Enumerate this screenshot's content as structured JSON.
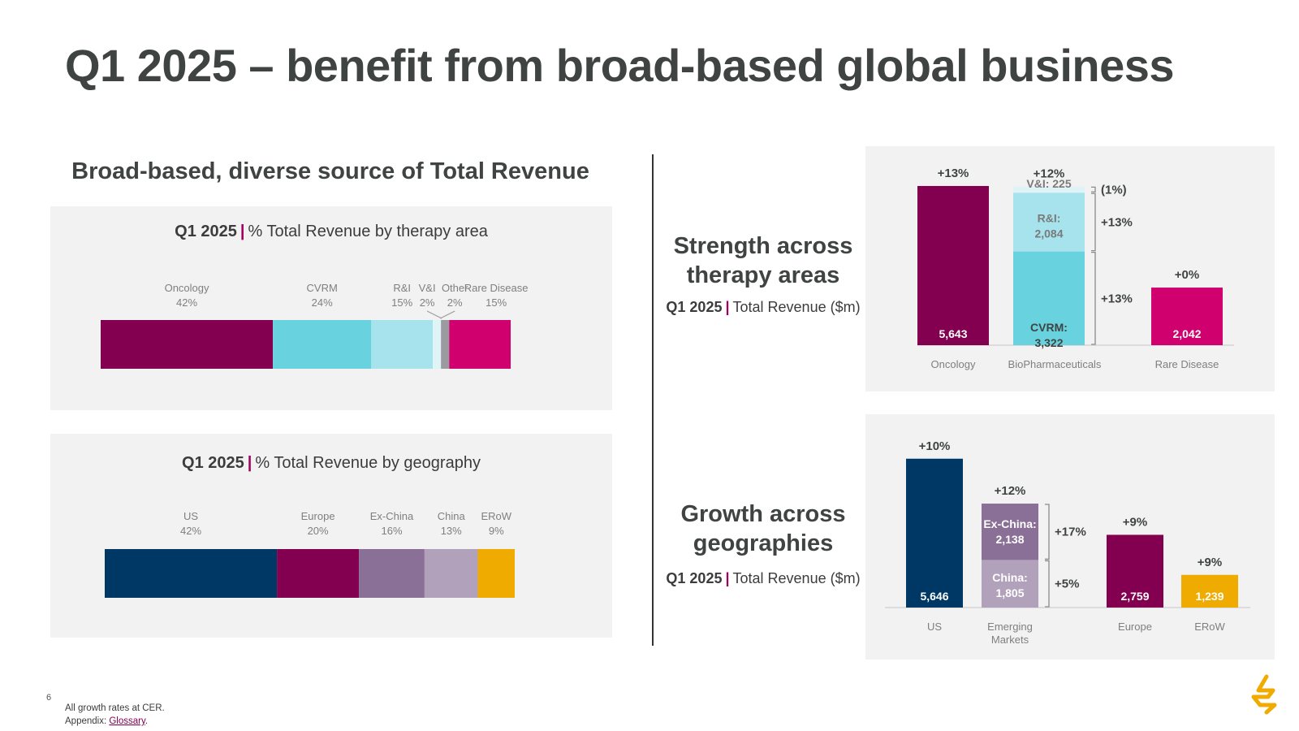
{
  "page": {
    "title": "Q1 2025 – benefit from broad-based global business",
    "left_heading": "Broad-based, diverse source of Total Revenue",
    "page_number": "6",
    "footnote_1": "All growth rates at CER.",
    "footnote_2_prefix": "Appendix: ",
    "footnote_2_link": "Glossary",
    "footnote_2_suffix": "."
  },
  "therapy_panel": {
    "title_bold": "Q1 2025",
    "title_sep": "|",
    "title_rest": "% Total Revenue by therapy area"
  },
  "geo_panel": {
    "title_bold": "Q1 2025",
    "title_sep": "|",
    "title_rest": "% Total Revenue by geography"
  },
  "therapy_heading": {
    "line1": "Strength across",
    "line2": "therapy areas",
    "sub_bold": "Q1 2025",
    "sub_sep": "|",
    "sub_rest": "Total Revenue ($m)"
  },
  "geo_heading": {
    "line1": "Growth across",
    "line2": "geographies",
    "sub_bold": "Q1 2025",
    "sub_sep": "|",
    "sub_rest": "Total Revenue ($m)"
  },
  "chart_data": [
    {
      "id": "therapy_share",
      "type": "bar",
      "orientation": "horizontal-stacked",
      "segments": [
        {
          "name": "Oncology",
          "value": 42,
          "label": "42%",
          "color": "#830051"
        },
        {
          "name": "CVRM",
          "value": 24,
          "label": "24%",
          "color": "#68d2df"
        },
        {
          "name": "R&I",
          "value": 15,
          "label": "15%",
          "color": "#a6e3ec"
        },
        {
          "name": "V&I",
          "value": 2,
          "label": "2%",
          "color": "#e0f4f7"
        },
        {
          "name": "Other",
          "value": 2,
          "label": "2%",
          "color": "#9b9aa0"
        },
        {
          "name": "Rare Disease",
          "value": 15,
          "label": "15%",
          "color": "#d0006f"
        }
      ]
    },
    {
      "id": "geo_share",
      "type": "bar",
      "orientation": "horizontal-stacked",
      "segments": [
        {
          "name": "US",
          "value": 42,
          "label": "42%",
          "color": "#003865"
        },
        {
          "name": "Europe",
          "value": 20,
          "label": "20%",
          "color": "#830051"
        },
        {
          "name": "Ex-China",
          "value": 16,
          "label": "16%",
          "color": "#8a7096"
        },
        {
          "name": "China",
          "value": 13,
          "label": "13%",
          "color": "#b2a1bb"
        },
        {
          "name": "ERoW",
          "value": 9,
          "label": "9%",
          "color": "#f0ab00"
        }
      ]
    },
    {
      "id": "therapy_revenue",
      "type": "bar",
      "unit": "$m",
      "ylim": [
        0,
        5700
      ],
      "categories": [
        "Oncology",
        "BioPharmaceuticals",
        "Rare Disease"
      ],
      "bars": [
        {
          "category": "Oncology",
          "growth": "+13%",
          "stack": [
            {
              "name": "Oncology",
              "value": 5643,
              "label": "5,643",
              "color": "#830051",
              "text_color": "#ffffff"
            }
          ]
        },
        {
          "category": "BioPharmaceuticals",
          "growth": "+12%",
          "stack": [
            {
              "name": "CVRM",
              "value": 3322,
              "label": "CVRM:|3,322",
              "color": "#68d2df",
              "text_color": "#3f4443",
              "growth": "+13%"
            },
            {
              "name": "R&I",
              "value": 2084,
              "label": "R&I:|2,084",
              "color": "#a6e3ec",
              "text_color": "#7a7a7a",
              "growth": "+13%"
            },
            {
              "name": "V&I",
              "value": 225,
              "label": "V&I: 225",
              "color": "#e0f4f7",
              "text_color": "#7a7a7a",
              "growth": "(1%)"
            }
          ]
        },
        {
          "category": "Rare Disease",
          "growth": "+0%",
          "stack": [
            {
              "name": "Rare Disease",
              "value": 2042,
              "label": "2,042",
              "color": "#d0006f",
              "text_color": "#ffffff"
            }
          ]
        }
      ]
    },
    {
      "id": "geo_revenue",
      "type": "bar",
      "unit": "$m",
      "ylim": [
        0,
        5700
      ],
      "categories": [
        "US",
        "Emerging Markets",
        "Europe",
        "ERoW"
      ],
      "bars": [
        {
          "category": "US",
          "growth": "+10%",
          "stack": [
            {
              "name": "US",
              "value": 5646,
              "label": "5,646",
              "color": "#003865",
              "text_color": "#ffffff"
            }
          ]
        },
        {
          "category": "Emerging Markets",
          "growth": "+12%",
          "stack": [
            {
              "name": "China",
              "value": 1805,
              "label": "China:|1,805",
              "color": "#b2a1bb",
              "text_color": "#ffffff",
              "growth": "+5%"
            },
            {
              "name": "Ex-China",
              "value": 2138,
              "label": "Ex-China:|2,138",
              "color": "#8a7096",
              "text_color": "#ffffff",
              "growth": "+17%"
            }
          ]
        },
        {
          "category": "Europe",
          "growth": "+9%",
          "stack": [
            {
              "name": "Europe",
              "value": 2759,
              "label": "2,759",
              "color": "#830051",
              "text_color": "#ffffff"
            }
          ]
        },
        {
          "category": "ERoW",
          "growth": "+9%",
          "stack": [
            {
              "name": "ERoW",
              "value": 1239,
              "label": "1,239",
              "color": "#f0ab00",
              "text_color": "#ffffff"
            }
          ]
        }
      ]
    }
  ],
  "colors": {
    "accent": "#a0005e",
    "text": "#3f4443",
    "panel": "#f2f2f2",
    "logo": "#f0ab00"
  },
  "icons": {
    "logo": "astrazeneca-logo-icon"
  }
}
